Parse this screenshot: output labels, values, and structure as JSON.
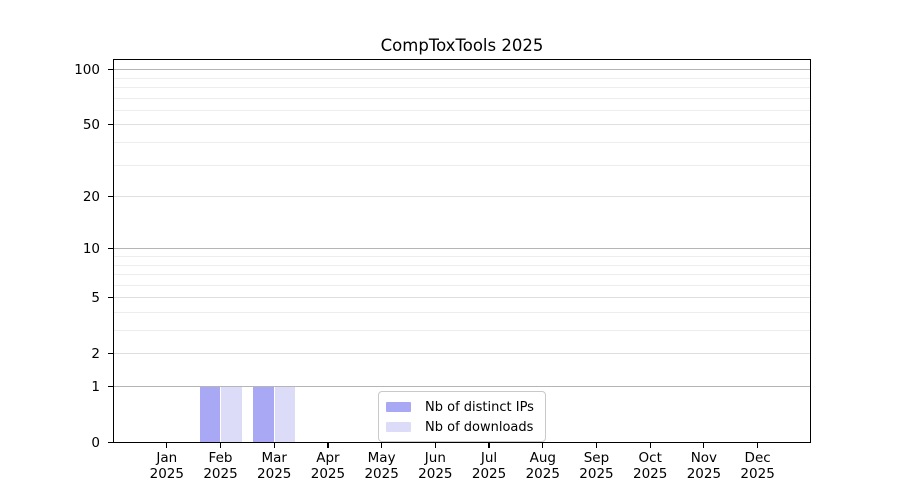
{
  "chart_data": {
    "type": "bar",
    "title": "CompToxTools 2025",
    "categories": [
      {
        "month": "Jan",
        "year": "2025"
      },
      {
        "month": "Feb",
        "year": "2025"
      },
      {
        "month": "Mar",
        "year": "2025"
      },
      {
        "month": "Apr",
        "year": "2025"
      },
      {
        "month": "May",
        "year": "2025"
      },
      {
        "month": "Jun",
        "year": "2025"
      },
      {
        "month": "Jul",
        "year": "2025"
      },
      {
        "month": "Aug",
        "year": "2025"
      },
      {
        "month": "Sep",
        "year": "2025"
      },
      {
        "month": "Oct",
        "year": "2025"
      },
      {
        "month": "Nov",
        "year": "2025"
      },
      {
        "month": "Dec",
        "year": "2025"
      }
    ],
    "series": [
      {
        "name": "Nb of distinct IPs",
        "color": "#a8a8f5",
        "values": [
          0,
          1,
          1,
          0,
          0,
          0,
          0,
          0,
          0,
          0,
          0,
          0
        ]
      },
      {
        "name": "Nb of downloads",
        "color": "#dcdcf9",
        "values": [
          0,
          1,
          1,
          0,
          0,
          0,
          0,
          0,
          0,
          0,
          0,
          0
        ]
      }
    ],
    "xlabel": "",
    "ylabel": "",
    "yscale": "log1p",
    "ylim": [
      0,
      115
    ],
    "y_major_ticks": [
      0,
      1,
      2,
      5,
      10,
      20,
      50,
      100
    ],
    "y_decade_lines": [
      1,
      10,
      100
    ],
    "y_minor_lines": [
      3,
      4,
      6,
      7,
      8,
      9,
      30,
      40,
      60,
      70,
      80,
      90
    ],
    "grid": true,
    "legend_position": "lower center"
  }
}
